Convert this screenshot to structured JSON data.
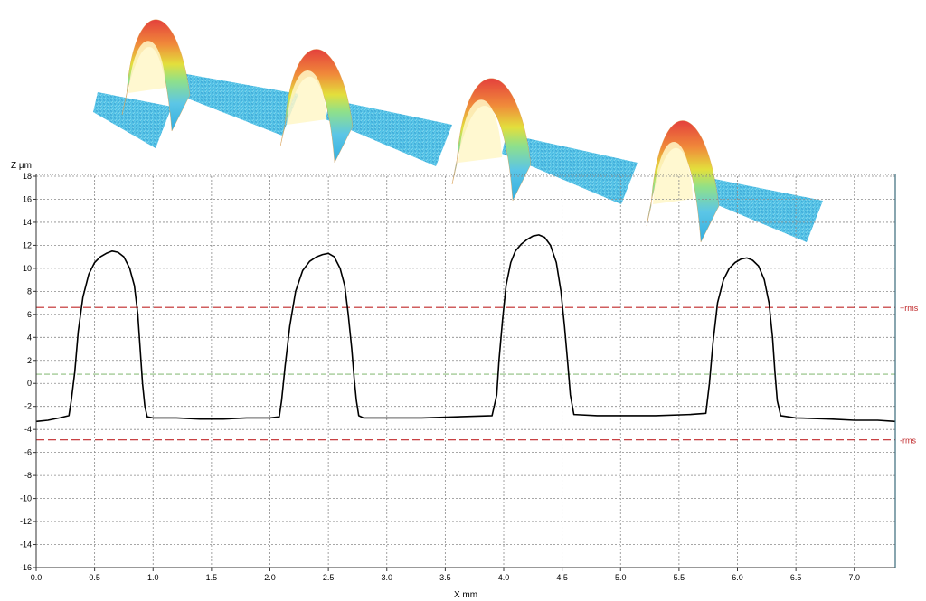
{
  "chart_data": {
    "type": "line",
    "xlabel": "X mm",
    "ylabel": "Z µm",
    "xlim": [
      0.0,
      7.35
    ],
    "ylim": [
      -16,
      18
    ],
    "grid": true,
    "x_ticks": [
      0.0,
      0.5,
      1.0,
      1.5,
      2.0,
      2.5,
      3.0,
      3.5,
      4.0,
      4.5,
      5.0,
      5.5,
      6.0,
      6.5,
      7.0
    ],
    "y_ticks": [
      -16,
      -14,
      -12,
      -10,
      -8,
      -6,
      -4,
      -2,
      0,
      2,
      4,
      6,
      8,
      10,
      12,
      14,
      16,
      18
    ],
    "reference_lines": [
      {
        "label": "+rms",
        "y": 6.6,
        "color": "#c0282a"
      },
      {
        "label": "",
        "y": 0.8,
        "color": "#6fae5b"
      },
      {
        "label": "-rms",
        "y": -4.9,
        "color": "#c0282a"
      }
    ],
    "series": [
      {
        "color": "#000000",
        "x": [
          0.0,
          0.1,
          0.2,
          0.28,
          0.3,
          0.33,
          0.36,
          0.4,
          0.45,
          0.5,
          0.55,
          0.6,
          0.65,
          0.7,
          0.75,
          0.8,
          0.84,
          0.87,
          0.89,
          0.91,
          0.93,
          0.95,
          1.0,
          1.2,
          1.4,
          1.6,
          1.8,
          2.0,
          2.08,
          2.1,
          2.13,
          2.17,
          2.22,
          2.28,
          2.34,
          2.4,
          2.45,
          2.5,
          2.55,
          2.6,
          2.64,
          2.67,
          2.7,
          2.72,
          2.74,
          2.76,
          2.8,
          3.0,
          3.3,
          3.6,
          3.9,
          3.94,
          3.96,
          3.99,
          4.02,
          4.06,
          4.1,
          4.15,
          4.2,
          4.25,
          4.3,
          4.35,
          4.4,
          4.45,
          4.49,
          4.52,
          4.55,
          4.57,
          4.6,
          4.8,
          5.0,
          5.3,
          5.6,
          5.73,
          5.76,
          5.79,
          5.83,
          5.88,
          5.93,
          5.98,
          6.03,
          6.08,
          6.13,
          6.18,
          6.23,
          6.27,
          6.3,
          6.32,
          6.34,
          6.37,
          6.5,
          6.8,
          7.0,
          7.2,
          7.35
        ],
        "y": [
          -3.3,
          -3.2,
          -3.0,
          -2.8,
          -1.5,
          1.0,
          4.5,
          7.5,
          9.5,
          10.5,
          11.0,
          11.3,
          11.5,
          11.4,
          11.0,
          10.0,
          8.5,
          6.0,
          3.0,
          0.0,
          -2.0,
          -2.9,
          -3.0,
          -3.0,
          -3.1,
          -3.1,
          -3.0,
          -3.0,
          -2.9,
          -1.5,
          1.5,
          5.0,
          8.0,
          9.8,
          10.6,
          11.0,
          11.2,
          11.3,
          11.0,
          10.0,
          8.5,
          6.0,
          3.0,
          0.5,
          -1.5,
          -2.8,
          -3.0,
          -3.0,
          -3.0,
          -2.9,
          -2.8,
          -1.0,
          2.0,
          5.5,
          8.5,
          10.5,
          11.5,
          12.1,
          12.5,
          12.8,
          12.9,
          12.7,
          12.0,
          10.5,
          8.0,
          5.0,
          1.5,
          -1.0,
          -2.7,
          -2.8,
          -2.8,
          -2.8,
          -2.7,
          -2.6,
          0.0,
          3.5,
          7.0,
          9.0,
          10.0,
          10.5,
          10.8,
          10.9,
          10.7,
          10.2,
          9.0,
          7.0,
          4.0,
          1.0,
          -1.5,
          -2.8,
          -3.0,
          -3.1,
          -3.2,
          -3.2,
          -3.3
        ]
      }
    ]
  },
  "surface_3d": {
    "colors": [
      "#33aee0",
      "#5cc6e6",
      "#8fe08a",
      "#e3df3c",
      "#f08a3a",
      "#e4403c"
    ]
  }
}
